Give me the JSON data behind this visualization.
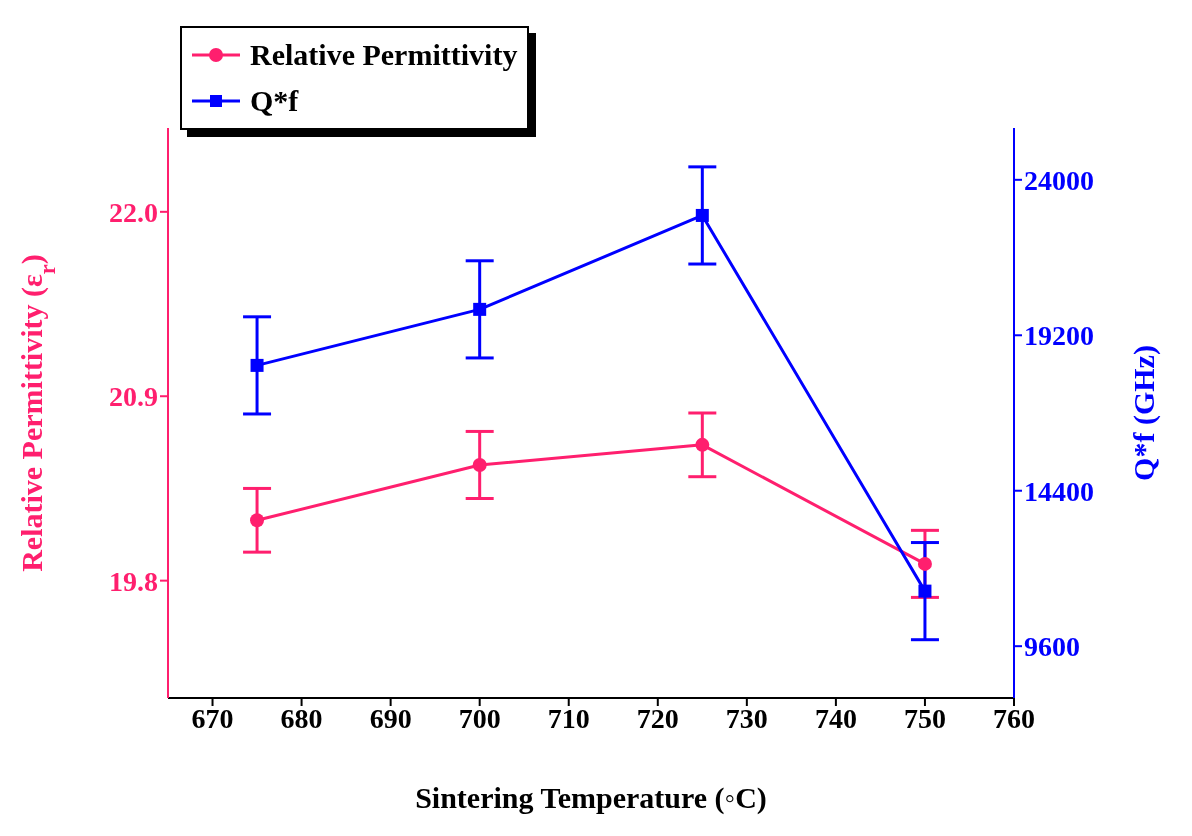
{
  "chart_data": {
    "type": "line",
    "xlabel": "Sintering Temperature (◦C)",
    "ylabel": "Relative Permittivity (ε$_{r}$)",
    "y2label": "Q*f (GHz)",
    "x": [
      675,
      700,
      725,
      750
    ],
    "series": [
      {
        "name": "Relative Permittivity",
        "color": "#ff1f6e",
        "marker": "circle",
        "values": [
          20.16,
          20.49,
          20.61,
          19.9
        ],
        "errors": [
          0.19,
          0.2,
          0.19,
          0.2
        ]
      },
      {
        "name": "Q*f",
        "color": "#0000ff",
        "marker": "square",
        "axis": "y2",
        "values": [
          18270,
          20000,
          22900,
          11300
        ],
        "errors": [
          1500,
          1500,
          1500,
          1500
        ]
      }
    ],
    "xlim": [
      665,
      760
    ],
    "xticks": [
      670,
      680,
      690,
      700,
      710,
      720,
      730,
      740,
      750,
      760
    ],
    "ylim": [
      19.1,
      22.5
    ],
    "yticks": [
      {
        "value": 19.8,
        "label": "19.8"
      },
      {
        "value": 20.9,
        "label": "20.9"
      },
      {
        "value": 22.0,
        "label": "22.0"
      }
    ],
    "y2lim": [
      8000,
      25600
    ],
    "y2ticks": [
      9600,
      14400,
      19200,
      24000
    ],
    "legend": "top left",
    "grid": false,
    "line_style": "solid"
  }
}
